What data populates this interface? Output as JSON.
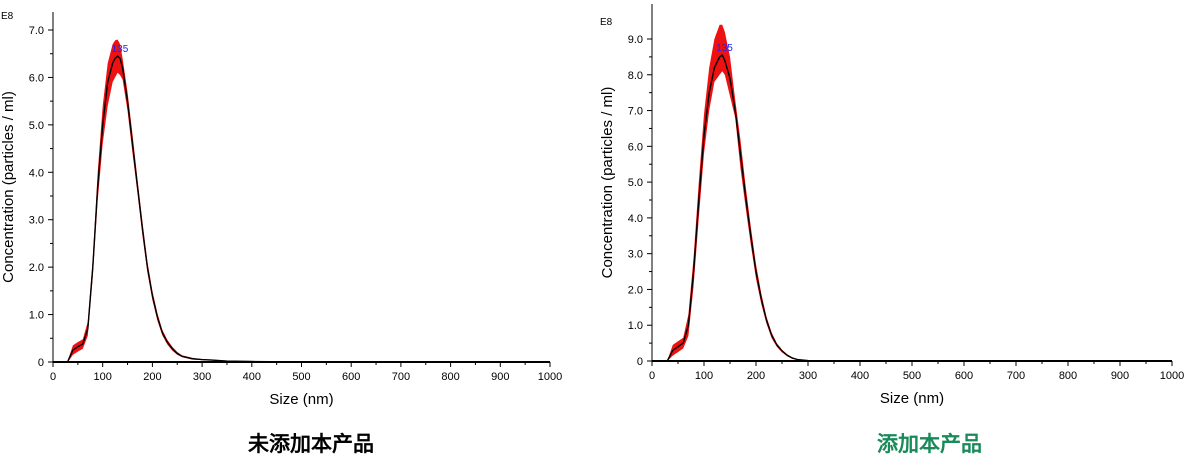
{
  "colors": {
    "band": "#ee1111",
    "curve": "#000000",
    "peak_label": "#2222ff",
    "caption_left": "#000000",
    "caption_right": "#1a8a5a"
  },
  "chart_data": [
    {
      "type": "line",
      "caption": "未添加本产品",
      "xlabel": "Size (nm)",
      "ylabel": "Concentration (particles / ml)",
      "y_multiplier": "E8",
      "xlim": [
        0,
        1000
      ],
      "ylim": [
        0,
        7.0
      ],
      "x_ticks": [
        "0",
        "100",
        "200",
        "300",
        "400",
        "500",
        "600",
        "700",
        "800",
        "900",
        "1000"
      ],
      "y_ticks": [
        "0",
        "1.0",
        "2.0",
        "3.0",
        "4.0",
        "5.0",
        "6.0",
        "7.0"
      ],
      "peak_label": "135",
      "x": [
        30,
        40,
        50,
        60,
        70,
        80,
        90,
        100,
        110,
        120,
        125,
        130,
        135,
        140,
        150,
        160,
        170,
        180,
        190,
        200,
        210,
        220,
        230,
        240,
        250,
        260,
        280,
        300,
        320,
        350,
        400,
        500,
        600,
        700,
        800,
        900,
        1000
      ],
      "series": [
        {
          "values": [
            0.02,
            0.25,
            0.32,
            0.38,
            0.7,
            2.0,
            3.7,
            5.0,
            5.9,
            6.3,
            6.4,
            6.45,
            6.4,
            6.2,
            5.5,
            4.6,
            3.7,
            2.8,
            2.0,
            1.4,
            0.95,
            0.62,
            0.42,
            0.28,
            0.18,
            0.12,
            0.07,
            0.05,
            0.04,
            0.02,
            0.01,
            0.0,
            0.0,
            0.0,
            0.0,
            0.0,
            0.0
          ],
          "upper": [
            0.04,
            0.35,
            0.42,
            0.48,
            0.85,
            2.2,
            4.0,
            5.4,
            6.3,
            6.7,
            6.78,
            6.8,
            6.7,
            6.4,
            5.7,
            4.8,
            3.85,
            2.95,
            2.12,
            1.5,
            1.03,
            0.68,
            0.47,
            0.32,
            0.21,
            0.14,
            0.09,
            0.06,
            0.05,
            0.03,
            0.015,
            0.0,
            0.0,
            0.0,
            0.0,
            0.0,
            0.0
          ],
          "lower": [
            0.0,
            0.15,
            0.22,
            0.28,
            0.55,
            1.8,
            3.4,
            4.6,
            5.4,
            5.9,
            6.0,
            6.1,
            6.05,
            5.95,
            5.3,
            4.4,
            3.55,
            2.65,
            1.88,
            1.3,
            0.87,
            0.56,
            0.37,
            0.24,
            0.15,
            0.1,
            0.05,
            0.04,
            0.03,
            0.01,
            0.005,
            0.0,
            0.0,
            0.0,
            0.0,
            0.0,
            0.0
          ]
        }
      ]
    },
    {
      "type": "line",
      "caption": "添加本产品",
      "xlabel": "Size (nm)",
      "ylabel": "Concentration (particles / ml)",
      "y_multiplier": "E8",
      "xlim": [
        0,
        1000
      ],
      "ylim": [
        0,
        9.0
      ],
      "x_ticks": [
        "0",
        "100",
        "200",
        "300",
        "400",
        "500",
        "600",
        "700",
        "800",
        "900",
        "1000"
      ],
      "y_ticks": [
        "0",
        "1.0",
        "2.0",
        "3.0",
        "4.0",
        "5.0",
        "6.0",
        "7.0",
        "8.0",
        "9.0"
      ],
      "peak_label": "135",
      "x": [
        30,
        40,
        50,
        60,
        70,
        80,
        90,
        100,
        110,
        120,
        130,
        135,
        140,
        150,
        160,
        170,
        180,
        190,
        200,
        210,
        220,
        230,
        240,
        250,
        260,
        270,
        280,
        300,
        350,
        400,
        500,
        600,
        700,
        800,
        900,
        1000
      ],
      "series": [
        {
          "values": [
            0.02,
            0.3,
            0.4,
            0.5,
            1.0,
            2.5,
            4.5,
            6.3,
            7.5,
            8.2,
            8.5,
            8.55,
            8.4,
            7.9,
            7.0,
            5.8,
            4.6,
            3.5,
            2.5,
            1.75,
            1.15,
            0.72,
            0.45,
            0.28,
            0.16,
            0.08,
            0.04,
            0.01,
            0.0,
            0.0,
            0.0,
            0.0,
            0.0,
            0.0,
            0.0,
            0.0
          ],
          "upper": [
            0.04,
            0.45,
            0.55,
            0.65,
            1.3,
            2.9,
            5.0,
            6.9,
            8.2,
            9.0,
            9.4,
            9.4,
            9.2,
            8.5,
            7.3,
            6.2,
            4.9,
            3.75,
            2.7,
            1.9,
            1.25,
            0.8,
            0.5,
            0.32,
            0.19,
            0.1,
            0.05,
            0.015,
            0.0,
            0.0,
            0.0,
            0.0,
            0.0,
            0.0,
            0.0,
            0.0
          ],
          "lower": [
            0.0,
            0.15,
            0.25,
            0.35,
            0.7,
            2.1,
            4.0,
            5.8,
            7.0,
            7.8,
            8.0,
            8.1,
            8.0,
            7.4,
            6.8,
            5.4,
            4.3,
            3.25,
            2.3,
            1.6,
            1.05,
            0.64,
            0.4,
            0.24,
            0.13,
            0.06,
            0.03,
            0.005,
            0.0,
            0.0,
            0.0,
            0.0,
            0.0,
            0.0,
            0.0,
            0.0
          ]
        }
      ]
    }
  ]
}
